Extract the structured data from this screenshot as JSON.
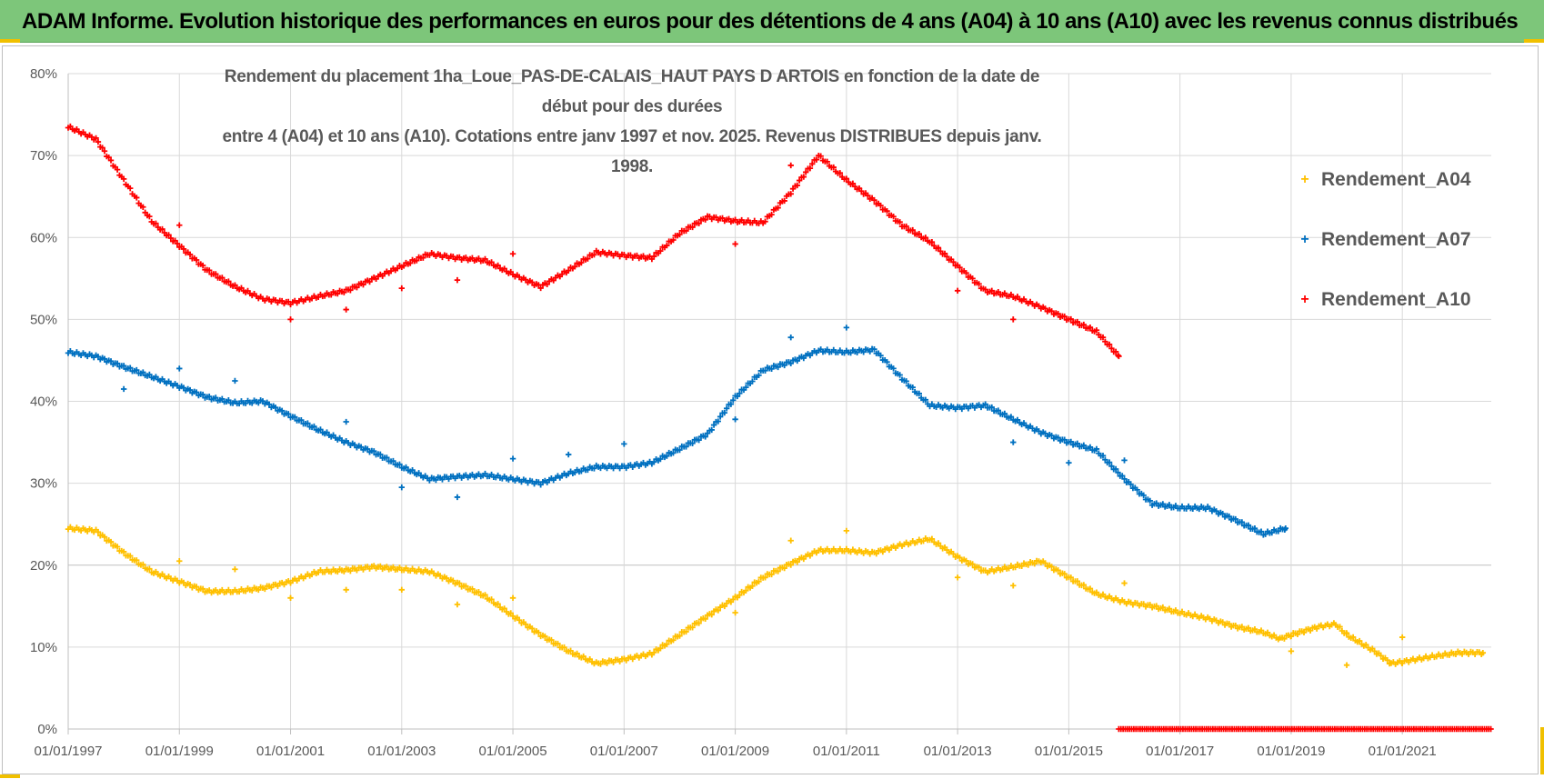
{
  "header": {
    "title": "ADAM Informe. Evolution historique des performances en euros pour des détentions de 4 ans (A04) à 10 ans (A10) avec les revenus connus distribués"
  },
  "chart_data": {
    "type": "scatter",
    "title_line1": "Rendement du placement 1ha_Loue_PAS-DE-CALAIS_HAUT PAYS D ARTOIS en fonction de la date de début pour des durées",
    "title_line2": "entre 4 (A04) et 10 ans (A10). Cotations entre janv 1997 et nov. 2025. Revenus DISTRIBUES depuis janv. 1998.",
    "xlabel": "",
    "ylabel": "",
    "xlim": [
      1997.0,
      2022.6
    ],
    "ylim": [
      0,
      80
    ],
    "y_ticks": [
      "0%",
      "10%",
      "20%",
      "30%",
      "40%",
      "50%",
      "60%",
      "70%",
      "80%"
    ],
    "x_ticks": [
      "01/01/1997",
      "01/01/1999",
      "01/01/2001",
      "01/01/2003",
      "01/01/2005",
      "01/01/2007",
      "01/01/2009",
      "01/01/2011",
      "01/01/2013",
      "01/01/2015",
      "01/01/2017",
      "01/01/2019",
      "01/01/2021"
    ],
    "x_tick_values": [
      1997,
      1999,
      2001,
      2003,
      2005,
      2007,
      2009,
      2011,
      2013,
      2015,
      2017,
      2019,
      2021
    ],
    "series": [
      {
        "name": "Rendement_A04",
        "color": "#ffc000",
        "anchors": [
          [
            1997.0,
            24.5
          ],
          [
            1997.5,
            24.2
          ],
          [
            1998.0,
            21.5
          ],
          [
            1998.5,
            19.2
          ],
          [
            1999.0,
            18.0
          ],
          [
            1999.5,
            16.8
          ],
          [
            2000.0,
            16.8
          ],
          [
            2000.5,
            17.2
          ],
          [
            2001.0,
            18.0
          ],
          [
            2001.5,
            19.2
          ],
          [
            2002.0,
            19.4
          ],
          [
            2002.5,
            19.8
          ],
          [
            2003.0,
            19.5
          ],
          [
            2003.5,
            19.2
          ],
          [
            2004.0,
            17.8
          ],
          [
            2004.5,
            16.2
          ],
          [
            2005.0,
            13.8
          ],
          [
            2005.5,
            11.5
          ],
          [
            2006.0,
            9.5
          ],
          [
            2006.5,
            8.0
          ],
          [
            2007.0,
            8.5
          ],
          [
            2007.5,
            9.2
          ],
          [
            2008.0,
            11.5
          ],
          [
            2008.5,
            13.8
          ],
          [
            2009.0,
            16.0
          ],
          [
            2009.5,
            18.5
          ],
          [
            2010.0,
            20.2
          ],
          [
            2010.5,
            21.8
          ],
          [
            2011.0,
            21.8
          ],
          [
            2011.5,
            21.5
          ],
          [
            2012.0,
            22.5
          ],
          [
            2012.5,
            23.2
          ],
          [
            2013.0,
            21.0
          ],
          [
            2013.5,
            19.2
          ],
          [
            2014.0,
            19.8
          ],
          [
            2014.5,
            20.5
          ],
          [
            2015.0,
            18.5
          ],
          [
            2015.5,
            16.5
          ],
          [
            2016.0,
            15.5
          ],
          [
            2016.5,
            15.0
          ],
          [
            2017.0,
            14.2
          ],
          [
            2017.5,
            13.5
          ],
          [
            2018.0,
            12.5
          ],
          [
            2018.5,
            11.8
          ],
          [
            2018.8,
            11.0
          ],
          [
            2019.0,
            11.5
          ],
          [
            2019.5,
            12.5
          ],
          [
            2019.8,
            12.8
          ],
          [
            2020.0,
            11.5
          ],
          [
            2020.5,
            9.5
          ],
          [
            2020.8,
            8.0
          ],
          [
            2021.0,
            8.2
          ],
          [
            2021.5,
            8.8
          ],
          [
            2022.0,
            9.3
          ],
          [
            2022.45,
            9.3
          ]
        ],
        "outliers": [
          [
            1999.0,
            20.5
          ],
          [
            2000.0,
            19.5
          ],
          [
            2001.0,
            16.0
          ],
          [
            2002.0,
            17.0
          ],
          [
            2003.0,
            17.0
          ],
          [
            2004.0,
            15.2
          ],
          [
            2005.0,
            16.0
          ],
          [
            2009.0,
            14.2
          ],
          [
            2010.0,
            23.0
          ],
          [
            2011.0,
            24.2
          ],
          [
            2013.0,
            18.5
          ],
          [
            2014.0,
            17.5
          ],
          [
            2016.0,
            17.8
          ],
          [
            2019.0,
            9.5
          ],
          [
            2020.0,
            7.8
          ],
          [
            2021.0,
            11.2
          ]
        ]
      },
      {
        "name": "Rendement_A07",
        "color": "#0070c0",
        "anchors": [
          [
            1997.0,
            46.0
          ],
          [
            1997.5,
            45.5
          ],
          [
            1998.0,
            44.2
          ],
          [
            1998.5,
            43.0
          ],
          [
            1999.0,
            41.8
          ],
          [
            1999.5,
            40.5
          ],
          [
            2000.0,
            39.8
          ],
          [
            2000.5,
            40.0
          ],
          [
            2001.0,
            38.2
          ],
          [
            2001.5,
            36.5
          ],
          [
            2002.0,
            35.0
          ],
          [
            2002.5,
            33.8
          ],
          [
            2003.0,
            32.0
          ],
          [
            2003.5,
            30.5
          ],
          [
            2004.0,
            30.8
          ],
          [
            2004.5,
            31.0
          ],
          [
            2005.0,
            30.5
          ],
          [
            2005.5,
            30.0
          ],
          [
            2006.0,
            31.2
          ],
          [
            2006.5,
            32.0
          ],
          [
            2007.0,
            32.0
          ],
          [
            2007.5,
            32.5
          ],
          [
            2008.0,
            34.2
          ],
          [
            2008.5,
            36.0
          ],
          [
            2009.0,
            40.5
          ],
          [
            2009.5,
            43.8
          ],
          [
            2010.0,
            44.8
          ],
          [
            2010.5,
            46.2
          ],
          [
            2011.0,
            46.0
          ],
          [
            2011.5,
            46.3
          ],
          [
            2012.0,
            42.8
          ],
          [
            2012.5,
            39.5
          ],
          [
            2013.0,
            39.2
          ],
          [
            2013.5,
            39.5
          ],
          [
            2014.0,
            37.8
          ],
          [
            2014.5,
            36.2
          ],
          [
            2015.0,
            35.0
          ],
          [
            2015.5,
            34.0
          ],
          [
            2016.0,
            30.5
          ],
          [
            2016.5,
            27.5
          ],
          [
            2017.0,
            27.0
          ],
          [
            2017.5,
            27.0
          ],
          [
            2018.0,
            25.5
          ],
          [
            2018.5,
            23.8
          ],
          [
            2018.9,
            24.5
          ]
        ],
        "outliers": [
          [
            1998.0,
            41.5
          ],
          [
            1999.0,
            44.0
          ],
          [
            2000.0,
            42.5
          ],
          [
            2002.0,
            37.5
          ],
          [
            2003.0,
            29.5
          ],
          [
            2004.0,
            28.3
          ],
          [
            2005.0,
            33.0
          ],
          [
            2006.0,
            33.5
          ],
          [
            2007.0,
            34.8
          ],
          [
            2009.0,
            37.8
          ],
          [
            2010.0,
            47.8
          ],
          [
            2011.0,
            49.0
          ],
          [
            2014.0,
            35.0
          ],
          [
            2015.0,
            32.5
          ],
          [
            2016.0,
            32.8
          ]
        ]
      },
      {
        "name": "Rendement_A10",
        "color": "#ff0000",
        "anchors": [
          [
            1997.0,
            73.5
          ],
          [
            1997.5,
            72.0
          ],
          [
            1998.0,
            67.0
          ],
          [
            1998.5,
            62.0
          ],
          [
            1999.0,
            59.0
          ],
          [
            1999.5,
            56.0
          ],
          [
            2000.0,
            54.0
          ],
          [
            2000.5,
            52.5
          ],
          [
            2001.0,
            52.0
          ],
          [
            2001.5,
            52.8
          ],
          [
            2002.0,
            53.5
          ],
          [
            2002.5,
            55.0
          ],
          [
            2003.0,
            56.5
          ],
          [
            2003.5,
            58.0
          ],
          [
            2004.0,
            57.5
          ],
          [
            2004.5,
            57.2
          ],
          [
            2005.0,
            55.5
          ],
          [
            2005.5,
            54.0
          ],
          [
            2006.0,
            56.0
          ],
          [
            2006.5,
            58.2
          ],
          [
            2007.0,
            57.8
          ],
          [
            2007.5,
            57.5
          ],
          [
            2008.0,
            60.5
          ],
          [
            2008.5,
            62.5
          ],
          [
            2009.0,
            62.0
          ],
          [
            2009.5,
            61.8
          ],
          [
            2010.0,
            65.5
          ],
          [
            2010.5,
            70.0
          ],
          [
            2011.0,
            67.0
          ],
          [
            2011.5,
            64.5
          ],
          [
            2012.0,
            61.5
          ],
          [
            2012.5,
            59.5
          ],
          [
            2013.0,
            56.5
          ],
          [
            2013.5,
            53.5
          ],
          [
            2014.0,
            52.8
          ],
          [
            2014.5,
            51.5
          ],
          [
            2015.0,
            50.0
          ],
          [
            2015.5,
            48.5
          ],
          [
            2015.9,
            45.5
          ]
        ],
        "outliers": [
          [
            1999.0,
            61.5
          ],
          [
            2001.0,
            50.0
          ],
          [
            2002.0,
            51.2
          ],
          [
            2003.0,
            53.8
          ],
          [
            2004.0,
            54.8
          ],
          [
            2005.0,
            58.0
          ],
          [
            2009.0,
            59.2
          ],
          [
            2010.0,
            68.8
          ],
          [
            2013.0,
            53.5
          ],
          [
            2014.0,
            50.0
          ]
        ],
        "zero_segment": [
          2015.9,
          2022.6
        ]
      }
    ],
    "legend": [
      "Rendement_A04",
      "Rendement_A07",
      "Rendement_A10"
    ],
    "legend_position": "top-right"
  }
}
